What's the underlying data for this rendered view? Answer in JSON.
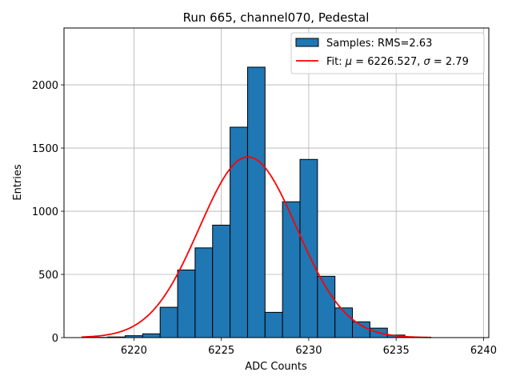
{
  "chart_data": {
    "type": "bar",
    "title": "Run 665, channel070, Pedestal",
    "xlabel": "ADC Counts",
    "ylabel": "Entries",
    "xlim": [
      6216,
      6240.3
    ],
    "ylim": [
      0,
      2450
    ],
    "grid": true,
    "xticks": [
      6220,
      6225,
      6230,
      6235,
      6240
    ],
    "yticks": [
      0,
      500,
      1000,
      1500,
      2000
    ],
    "bin_width": 1,
    "bin_edges_start": 6217.5,
    "series": [
      {
        "name": "Samples: RMS=2.63",
        "kind": "histogram",
        "color": "#1f77b4",
        "edge_color": "#000000",
        "bins": [
          {
            "left": 6217.5,
            "count": 2
          },
          {
            "left": 6218.5,
            "count": 5
          },
          {
            "left": 6219.5,
            "count": 15
          },
          {
            "left": 6220.5,
            "count": 30
          },
          {
            "left": 6221.5,
            "count": 240
          },
          {
            "left": 6222.5,
            "count": 535
          },
          {
            "left": 6223.5,
            "count": 710
          },
          {
            "left": 6224.5,
            "count": 890
          },
          {
            "left": 6225.5,
            "count": 1665
          },
          {
            "left": 6226.5,
            "count": 2140
          },
          {
            "left": 6227.5,
            "count": 200
          },
          {
            "left": 6228.5,
            "count": 1075
          },
          {
            "left": 6229.5,
            "count": 1410
          },
          {
            "left": 6230.5,
            "count": 485
          },
          {
            "left": 6231.5,
            "count": 235
          },
          {
            "left": 6232.5,
            "count": 125
          },
          {
            "left": 6233.5,
            "count": 75
          },
          {
            "left": 6234.5,
            "count": 20
          },
          {
            "left": 6235.5,
            "count": 3
          }
        ]
      },
      {
        "name": "Fit: μ = 6226.527, σ = 2.79",
        "kind": "gaussian",
        "color": "#ff0000",
        "mu": 6226.527,
        "sigma": 2.79,
        "amplitude": 1430,
        "x_range": [
          6217,
          6237
        ]
      }
    ],
    "legend": {
      "position": "top-right",
      "hist_label": "Samples: RMS=2.63",
      "fit_label_prefix": "Fit: ",
      "fit_mu_symbol": "μ",
      "fit_mu_text": " = 6226.527, ",
      "fit_sigma_symbol": "σ",
      "fit_sigma_text": " = 2.79"
    }
  }
}
